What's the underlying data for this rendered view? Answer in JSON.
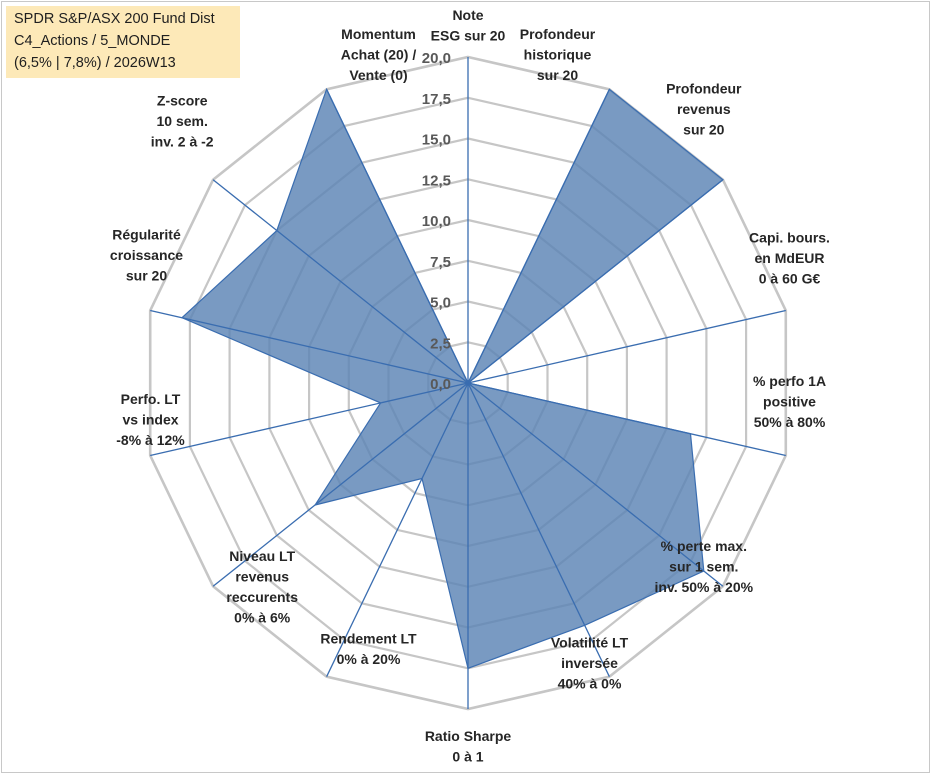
{
  "title_box": {
    "line1": "SPDR S&P/ASX 200 Fund Dist",
    "line2": "C4_Actions / 5_MONDE",
    "line3": "(6,5% | 7,8%) / 2026W13"
  },
  "chart_data": {
    "type": "radar",
    "title": "SPDR S&P/ASX 200 Fund Dist",
    "rmin": 0,
    "rmax": 20,
    "tick_values": [
      0,
      2.5,
      5,
      7.5,
      10,
      12.5,
      15,
      17.5,
      20
    ],
    "tick_labels": [
      "0,0",
      "2,5",
      "5,0",
      "7,5",
      "10,0",
      "12,5",
      "15,0",
      "17,5",
      "20,0"
    ],
    "grid": true,
    "axes": [
      {
        "label": [
          "Note",
          "ESG sur 20"
        ],
        "value": 0
      },
      {
        "label": [
          "Profondeur",
          "historique",
          "sur 20"
        ],
        "value": 20
      },
      {
        "label": [
          "Profondeur",
          "revenus",
          "sur 20"
        ],
        "value": 20
      },
      {
        "label": [
          "Capi. bours.",
          "en MdEUR",
          "0 à 60 G€"
        ],
        "value": 0
      },
      {
        "label": [
          "% perfo 1A",
          "positive",
          "50% à 80%"
        ],
        "value": 14
      },
      {
        "label": [
          "% perte max.",
          "sur 1 sem.",
          "inv. 50% à 20%"
        ],
        "value": 18.5
      },
      {
        "label": [
          "Volatilité LT",
          "inversée",
          "40% à 0%"
        ],
        "value": 16.5
      },
      {
        "label": [
          "Ratio Sharpe",
          "0 à 1"
        ],
        "value": 17.5
      },
      {
        "label": [
          "Rendement LT",
          "0% à 20%"
        ],
        "value": 6.5
      },
      {
        "label": [
          "Niveau LT",
          "revenus",
          "reccurents",
          "0% à 6%"
        ],
        "value": 12
      },
      {
        "label": [
          "Perfo. LT",
          "vs index",
          "-8% à 12%"
        ],
        "value": 5.5
      },
      {
        "label": [
          "Régularité",
          "croissance",
          "sur 20"
        ],
        "value": 18
      },
      {
        "label": [
          "Z-score",
          "10 sem.",
          "inv. 2 à -2"
        ],
        "value": 15
      },
      {
        "label": [
          "Momentum",
          "Achat (20) /",
          "Vente (0)"
        ],
        "value": 20
      }
    ],
    "colors": {
      "fill": "#5b84b5",
      "stroke": "#3a6db0",
      "grid": "#c6c6c6",
      "spoke": "#3a6db0"
    }
  }
}
